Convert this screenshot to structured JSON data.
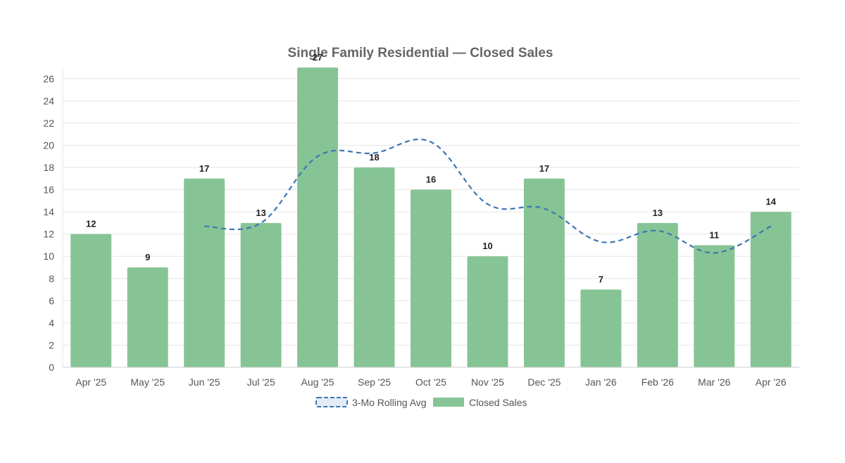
{
  "chart_data": {
    "type": "bar",
    "title": "Single Family Residential — Closed Sales",
    "categories": [
      "Apr '25",
      "May '25",
      "Jun '25",
      "Jul '25",
      "Aug '25",
      "Sep '25",
      "Oct '25",
      "Nov '25",
      "Dec '25",
      "Jan '26",
      "Feb '26",
      "Mar '26",
      "Apr '26"
    ],
    "series": [
      {
        "name": "Closed Sales",
        "kind": "bar",
        "color": "#86c495",
        "values": [
          12,
          9,
          17,
          13,
          27,
          18,
          16,
          10,
          17,
          7,
          13,
          11,
          14
        ]
      },
      {
        "name": "3-Mo Rolling Avg",
        "kind": "line",
        "style": "dashed",
        "color": "#3b76b4",
        "values": [
          null,
          null,
          12.7,
          13.0,
          19.0,
          19.3,
          20.3,
          14.7,
          14.3,
          11.3,
          12.3,
          10.3,
          12.7
        ]
      }
    ],
    "xlabel": "",
    "ylabel": "",
    "ylim": [
      0,
      27
    ],
    "yticks": [
      0,
      2,
      4,
      6,
      8,
      10,
      12,
      14,
      16,
      18,
      20,
      22,
      24,
      26
    ],
    "grid": true,
    "data_labels": true,
    "legend": {
      "position": "bottom",
      "items": [
        "3-Mo Rolling Avg",
        "Closed Sales"
      ]
    },
    "colors": {
      "grid": "#e6e6e6",
      "axis": "#cccccc"
    }
  }
}
